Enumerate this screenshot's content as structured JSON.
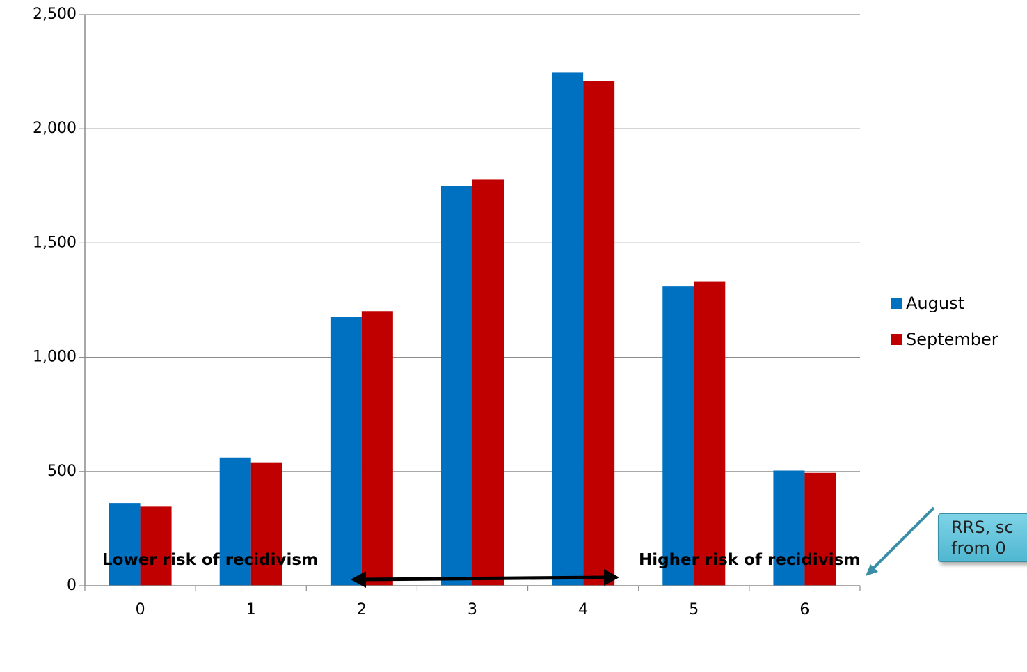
{
  "chart_data": {
    "type": "bar",
    "categories": [
      "0",
      "1",
      "2",
      "3",
      "4",
      "5",
      "6"
    ],
    "series": [
      {
        "name": "August",
        "color": "#0070C0",
        "values": [
          362,
          561,
          1176,
          1749,
          2246,
          1312,
          504
        ]
      },
      {
        "name": "September",
        "color": "#C00000",
        "values": [
          346,
          540,
          1202,
          1777,
          2209,
          1332,
          494
        ]
      }
    ],
    "yticks": [
      "0",
      "500",
      "1,000",
      "1,500",
      "2,000",
      "2,500"
    ],
    "ylim": [
      0,
      2500
    ],
    "grid": true,
    "legend_position": "right"
  },
  "callout": {
    "line1": "RRS, sc",
    "line2": "from 0"
  },
  "annotations": {
    "lower_risk": "Lower risk of recidivism",
    "higher_risk": "Higher risk of recidivism"
  }
}
